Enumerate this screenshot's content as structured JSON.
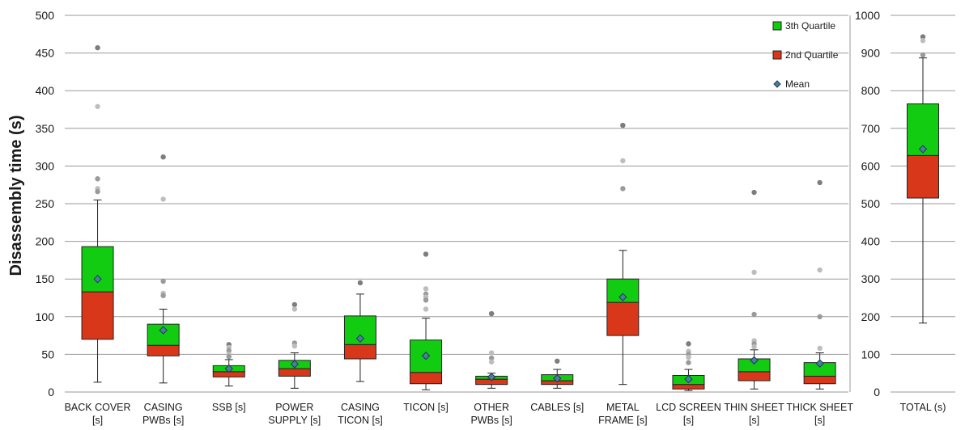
{
  "chart_data": [
    {
      "type": "box",
      "ylabel": "Disassembly time (s)",
      "ylim": [
        0,
        500
      ],
      "y_ticks": [
        0,
        50,
        100,
        150,
        200,
        250,
        300,
        350,
        400,
        450,
        500
      ],
      "grid": true,
      "legend_position": "top-right",
      "legend": [
        "3th Quartile",
        "2nd Quartile",
        "Mean"
      ],
      "colors": {
        "q3": "#11cc11",
        "q2": "#d8371a",
        "mean": "#4a7fa0",
        "outlier": "#888888"
      },
      "categories": [
        {
          "label": [
            "BACK COVER",
            "[s]"
          ],
          "min": 13,
          "q1": 70,
          "median": 133,
          "q3": 193,
          "max": 255,
          "mean": 150,
          "outliers": [
            457,
            379,
            283,
            270,
            266
          ]
        },
        {
          "label": [
            "CASING",
            "PWBs [s]"
          ],
          "min": 12,
          "q1": 48,
          "median": 62,
          "q3": 90,
          "max": 110,
          "mean": 82,
          "outliers": [
            312,
            256,
            147,
            131,
            128
          ]
        },
        {
          "label": [
            "SSB [s]"
          ],
          "min": 8,
          "q1": 20,
          "median": 27,
          "q3": 35,
          "max": 43,
          "mean": 31,
          "outliers": [
            63,
            59,
            55,
            50,
            47
          ]
        },
        {
          "label": [
            "POWER",
            "SUPPLY [s]"
          ],
          "min": 5,
          "q1": 21,
          "median": 31,
          "q3": 42,
          "max": 52,
          "mean": 37,
          "outliers": [
            116,
            110,
            65,
            61
          ]
        },
        {
          "label": [
            "CASING",
            "TICON [s]"
          ],
          "min": 14,
          "q1": 44,
          "median": 63,
          "q3": 101,
          "max": 130,
          "mean": 71,
          "outliers": [
            145
          ]
        },
        {
          "label": [
            "TICON [s]"
          ],
          "min": 3,
          "q1": 11,
          "median": 26,
          "q3": 69,
          "max": 98,
          "mean": 48,
          "outliers": [
            183,
            137,
            130,
            126,
            122,
            110
          ]
        },
        {
          "label": [
            "OTHER",
            "PWBs [s]"
          ],
          "min": 5,
          "q1": 10,
          "median": 17,
          "q3": 21,
          "max": 25,
          "mean": 20,
          "outliers": [
            104,
            52,
            45,
            40
          ]
        },
        {
          "label": [
            "CABLES [s]"
          ],
          "min": 5,
          "q1": 10,
          "median": 15,
          "q3": 23,
          "max": 30,
          "mean": 18,
          "outliers": [
            41
          ]
        },
        {
          "label": [
            "METAL",
            "FRAME [s]"
          ],
          "min": 10,
          "q1": 75,
          "median": 119,
          "q3": 150,
          "max": 188,
          "mean": 126,
          "outliers": [
            354,
            307,
            270
          ]
        },
        {
          "label": [
            "LCD SCREEN",
            "[s]"
          ],
          "min": 2,
          "q1": 4,
          "median": 10,
          "q3": 22,
          "max": 30,
          "mean": 17,
          "outliers": [
            64,
            54,
            50,
            46,
            39
          ]
        },
        {
          "label": [
            "THIN SHEET",
            "[s]"
          ],
          "min": 4,
          "q1": 15,
          "median": 27,
          "q3": 44,
          "max": 56,
          "mean": 42,
          "outliers": [
            265,
            159,
            103,
            68,
            64,
            60
          ]
        },
        {
          "label": [
            "THICK SHEET",
            "[s]"
          ],
          "min": 4,
          "q1": 11,
          "median": 21,
          "q3": 39,
          "max": 52,
          "mean": 38,
          "outliers": [
            278,
            162,
            100,
            58
          ]
        }
      ]
    },
    {
      "type": "box",
      "ylim": [
        0,
        1000
      ],
      "y_ticks": [
        0,
        100,
        200,
        300,
        400,
        500,
        600,
        700,
        800,
        900,
        1000
      ],
      "grid": true,
      "categories": [
        {
          "label": [
            "TOTAL (s)"
          ],
          "min": 183,
          "q1": 515,
          "median": 628,
          "q3": 765,
          "max": 887,
          "mean": 645,
          "outliers": [
            943,
            933,
            895
          ]
        }
      ]
    }
  ]
}
